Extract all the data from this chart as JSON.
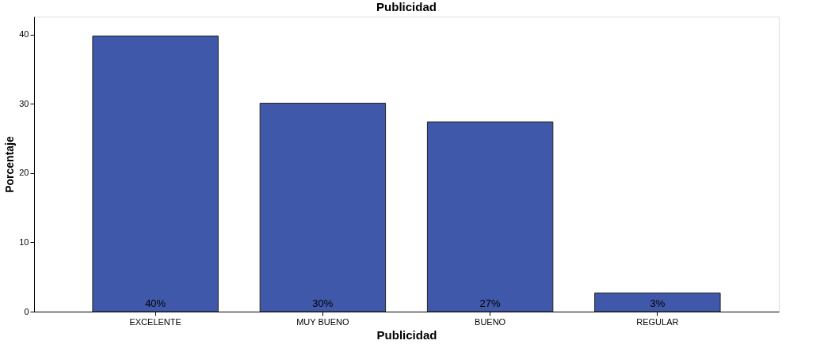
{
  "chart_data": {
    "type": "bar",
    "title": "Publicidad",
    "xlabel": "Publicidad",
    "ylabel": "Porcentaje",
    "categories": [
      "EXCELENTE",
      "MUY BUENO",
      "BUENO",
      "REGULAR"
    ],
    "values": [
      39.8,
      30.1,
      27.4,
      2.7
    ],
    "value_labels": [
      "40%",
      "30%",
      "27%",
      "3%"
    ],
    "color": "#3f58a9",
    "ylim": [
      0,
      42.6
    ],
    "yticks": [
      0,
      10,
      20,
      30,
      40
    ],
    "grid": false
  }
}
